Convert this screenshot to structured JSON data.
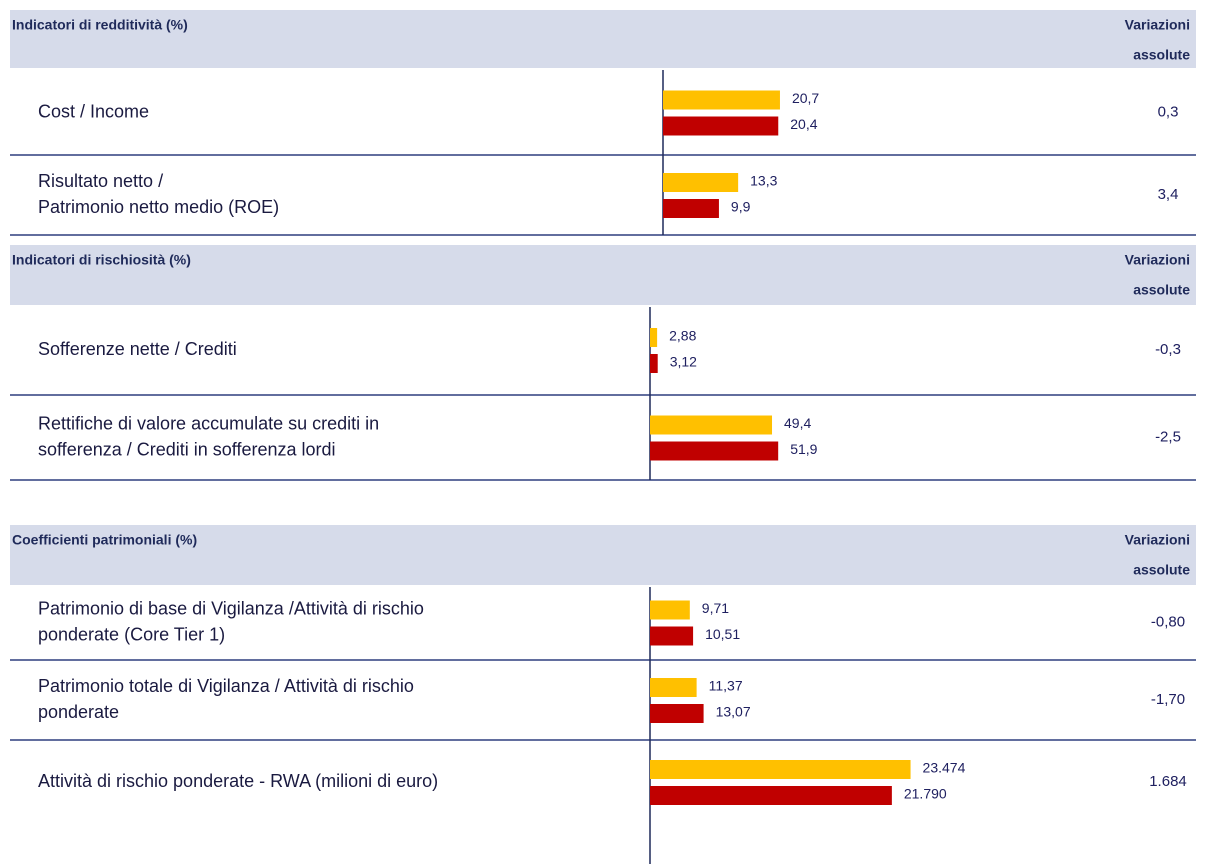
{
  "sections": [
    {
      "title": "Indicatori di redditività (%)",
      "change_header": [
        "Variazioni",
        "assolute"
      ],
      "rows": [
        {
          "label": [
            "Cost / Income"
          ],
          "values": [
            20.7,
            20.4
          ],
          "value_labels": [
            "20,7",
            "20,4"
          ],
          "change": "0,3"
        },
        {
          "label": [
            "Risultato netto /",
            "Patrimonio netto medio (ROE)"
          ],
          "values": [
            13.3,
            9.9
          ],
          "value_labels": [
            "13,3",
            "9,9"
          ],
          "change": "3,4"
        }
      ]
    },
    {
      "title": "Indicatori di rischiosità (%)",
      "change_header": [
        "Variazioni",
        "assolute"
      ],
      "rows": [
        {
          "label": [
            "Sofferenze nette / Crediti"
          ],
          "values": [
            2.88,
            3.12
          ],
          "value_labels": [
            "2,88",
            "3,12"
          ],
          "change": "-0,3"
        },
        {
          "label": [
            "Rettifiche di valore accumulate su crediti in",
            "sofferenza / Crediti in sofferenza lordi"
          ],
          "values": [
            49.4,
            51.9
          ],
          "value_labels": [
            "49,4",
            "51,9"
          ],
          "change": "-2,5"
        }
      ]
    },
    {
      "title": "Coefficienti patrimoniali (%)",
      "change_header": [
        "Variazioni",
        "assolute"
      ],
      "rows": [
        {
          "label": [
            "Patrimonio di base di Vigilanza /Attività di rischio",
            "ponderate (Core Tier 1)"
          ],
          "values": [
            9.71,
            10.51
          ],
          "value_labels": [
            "9,71",
            "10,51"
          ],
          "change": "-0,80"
        },
        {
          "label": [
            "Patrimonio totale di Vigilanza / Attività di rischio",
            "ponderate"
          ],
          "values": [
            11.37,
            13.07
          ],
          "value_labels": [
            "11,37",
            "13,07"
          ],
          "change": "-1,70"
        },
        {
          "label": [
            "Attività di rischio ponderate - RWA (milioni di euro)"
          ],
          "values": [
            23474,
            21790
          ],
          "value_labels": [
            "23.474",
            "21.790"
          ],
          "change": "1.684"
        }
      ]
    }
  ]
}
